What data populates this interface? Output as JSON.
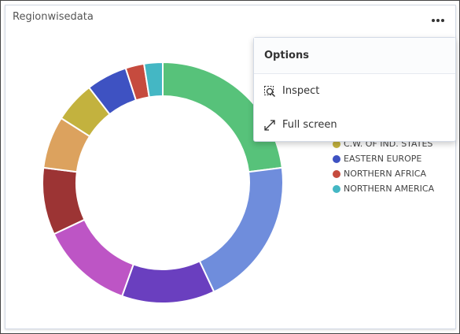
{
  "panel": {
    "title": "Regionwisedata"
  },
  "menu": {
    "title": "Options",
    "items": [
      "Inspect",
      "Full screen"
    ]
  },
  "chart_data": {
    "type": "pie",
    "categories": [
      null,
      null,
      null,
      null,
      null,
      null,
      "C.W. OF IND. STATES",
      "EASTERN EUROPE",
      "NORTHERN AFRICA",
      "NORTHERN AMERICA"
    ],
    "values": [
      23,
      20,
      12.5,
      12.5,
      9,
      7,
      5.5,
      5.5,
      2.5,
      2.5
    ],
    "colors": [
      "#57c27a",
      "#6f8ddc",
      "#6a3fbf",
      "#bd55c5",
      "#9c3434",
      "#dca25e",
      "#c3b23e",
      "#3e52c2",
      "#c64b3e",
      "#44b7c4"
    ],
    "donut": true
  }
}
